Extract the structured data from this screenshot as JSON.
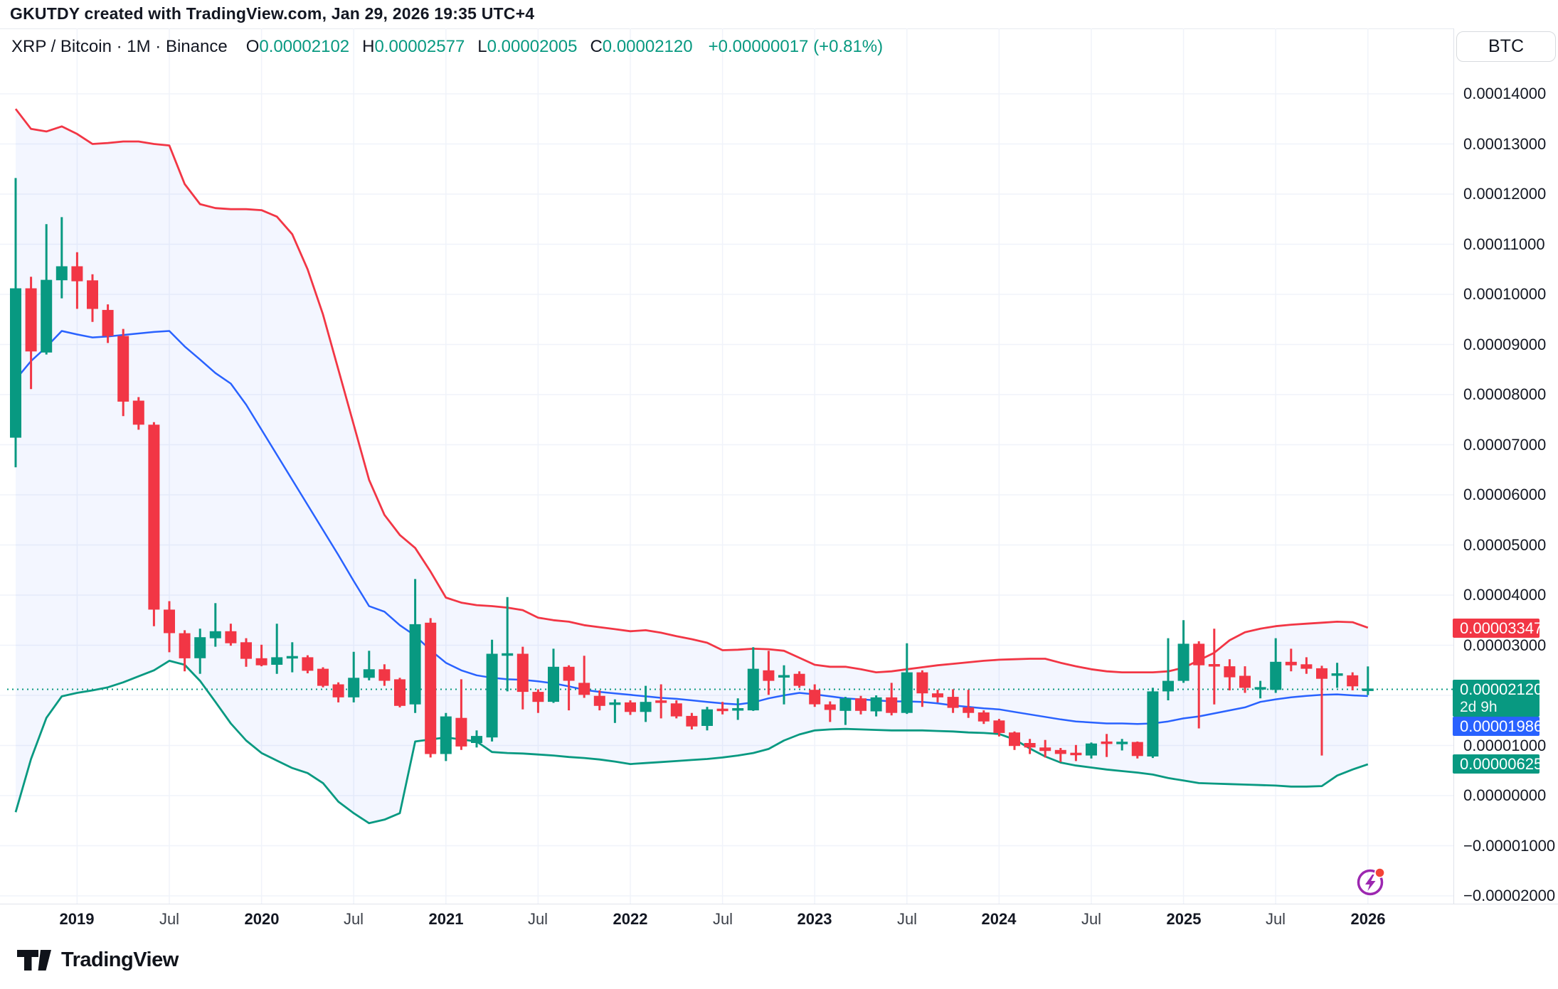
{
  "attribution": "GKUTDY created with TradingView.com, Jan 29, 2026 19:35 UTC+4",
  "legend": {
    "title": "XRP / Bitcoin · 1M · Binance",
    "ohlc": [
      {
        "k": "O",
        "v": "0.00002102"
      },
      {
        "k": "H",
        "v": "0.00002577"
      },
      {
        "k": "L",
        "v": "0.00002005"
      },
      {
        "k": "C",
        "v": "0.00002120"
      }
    ],
    "change": "+0.00000017 (+0.81%)"
  },
  "currency_button": "BTC",
  "footer": {
    "logo_text": "TradingView"
  },
  "colors": {
    "up": "#089981",
    "down": "#f23645",
    "basis_line": "#2962ff",
    "upper_band": "#f23645",
    "lower_band": "#089981",
    "band_fill": "rgba(41,98,255,0.055)",
    "grid": "#f0f3fa",
    "axis_border": "#e0e3eb",
    "axis_text": "#131722",
    "last_price_line": "#089981",
    "label_last_bg": "#089981",
    "label_basis_bg": "#2962ff",
    "label_upper_bg": "#f23645",
    "label_lower_bg": "#089981",
    "snapshot_ring": "#9c27b0",
    "snapshot_dot": "#f44336"
  },
  "price_axis": {
    "ticks": [
      {
        "label": "0.00014000",
        "v": 14
      },
      {
        "label": "0.00013000",
        "v": 13
      },
      {
        "label": "0.00012000",
        "v": 12
      },
      {
        "label": "0.00011000",
        "v": 11
      },
      {
        "label": "0.00010000",
        "v": 10
      },
      {
        "label": "0.00009000",
        "v": 9
      },
      {
        "label": "0.00008000",
        "v": 8
      },
      {
        "label": "0.00007000",
        "v": 7
      },
      {
        "label": "0.00006000",
        "v": 6
      },
      {
        "label": "0.00005000",
        "v": 5
      },
      {
        "label": "0.00004000",
        "v": 4
      },
      {
        "label": "0.00003000",
        "v": 3
      },
      {
        "label": "0.00001000",
        "v": 1
      },
      {
        "label": "0.00000000",
        "v": 0
      },
      {
        "label": "−0.00001000",
        "v": -1
      },
      {
        "label": "−0.00002000",
        "v": -2
      }
    ],
    "value_labels": [
      {
        "id": "upper-band",
        "text": "0.00003347",
        "bg": "label_upper_bg",
        "v": 3.347
      },
      {
        "id": "last-price",
        "text": "0.00002120",
        "sub": "2d 9h",
        "bg": "label_last_bg",
        "v": 2.12
      },
      {
        "id": "basis",
        "text": "0.00001986",
        "bg": "label_basis_bg",
        "v": 1.986,
        "stack_after": "last-price"
      },
      {
        "id": "lower-band",
        "text": "0.00000625",
        "bg": "label_lower_bg",
        "v": 0.625
      }
    ]
  },
  "time_axis": {
    "ticks": [
      {
        "label": "2019",
        "index": 4,
        "major": true
      },
      {
        "label": "Jul",
        "index": 10,
        "major": false
      },
      {
        "label": "2020",
        "index": 16,
        "major": true
      },
      {
        "label": "Jul",
        "index": 22,
        "major": false
      },
      {
        "label": "2021",
        "index": 28,
        "major": true
      },
      {
        "label": "Jul",
        "index": 34,
        "major": false
      },
      {
        "label": "2022",
        "index": 40,
        "major": true
      },
      {
        "label": "Jul",
        "index": 46,
        "major": false
      },
      {
        "label": "2023",
        "index": 52,
        "major": true
      },
      {
        "label": "Jul",
        "index": 58,
        "major": false
      },
      {
        "label": "2024",
        "index": 64,
        "major": true
      },
      {
        "label": "Jul",
        "index": 70,
        "major": false
      },
      {
        "label": "2025",
        "index": 76,
        "major": true
      },
      {
        "label": "Jul",
        "index": 82,
        "major": false
      },
      {
        "label": "2026",
        "index": 88,
        "major": true
      }
    ]
  },
  "chart_data": {
    "type": "candlestick",
    "title": "XRP / Bitcoin",
    "interval": "1M",
    "exchange": "Binance",
    "quote_unit": "BTC",
    "price_unit": 1e-05,
    "ylim_price_units": [
      -2,
      14.5
    ],
    "grid": true,
    "overlays": [
      "upper_band",
      "basis",
      "lower_band",
      "band_fill",
      "last_price_dotted_line"
    ],
    "last_close": 2.12,
    "current_bar_countdown": "2d 9h",
    "fields": [
      "month",
      "open",
      "high",
      "low",
      "close",
      "band_upper",
      "band_basis",
      "band_lower"
    ],
    "months": [
      [
        "2018-09",
        7.14,
        12.32,
        6.55,
        10.12,
        13.7,
        8.3,
        -0.33
      ],
      [
        "2018-10",
        10.12,
        10.35,
        8.11,
        8.86,
        13.3,
        8.67,
        0.73
      ],
      [
        "2018-11",
        8.84,
        11.4,
        8.8,
        10.29,
        13.25,
        8.95,
        1.55
      ],
      [
        "2018-12",
        10.28,
        11.54,
        9.92,
        10.56,
        13.35,
        9.27,
        1.98
      ],
      [
        "2019-01",
        10.56,
        10.84,
        9.71,
        10.26,
        13.2,
        9.2,
        2.05
      ],
      [
        "2019-02",
        10.28,
        10.4,
        9.45,
        9.71,
        13.0,
        9.14,
        2.1
      ],
      [
        "2019-03",
        9.69,
        9.8,
        9.03,
        9.17,
        13.02,
        9.16,
        2.16
      ],
      [
        "2019-04",
        9.17,
        9.31,
        7.57,
        7.86,
        13.05,
        9.19,
        2.26
      ],
      [
        "2019-05",
        7.88,
        7.95,
        7.3,
        7.4,
        13.05,
        9.22,
        2.38
      ],
      [
        "2019-06",
        7.4,
        7.45,
        3.38,
        3.71,
        13.0,
        9.25,
        2.5
      ],
      [
        "2019-07",
        3.71,
        3.88,
        2.86,
        3.24,
        12.97,
        9.27,
        2.69
      ],
      [
        "2019-08",
        3.24,
        3.3,
        2.48,
        2.74,
        12.2,
        8.96,
        2.61
      ],
      [
        "2019-09",
        2.74,
        3.33,
        2.43,
        3.16,
        11.8,
        8.7,
        2.29
      ],
      [
        "2019-10",
        3.14,
        3.84,
        2.97,
        3.28,
        11.72,
        8.43,
        1.87
      ],
      [
        "2019-11",
        3.28,
        3.43,
        2.99,
        3.04,
        11.7,
        8.22,
        1.44
      ],
      [
        "2019-12",
        3.06,
        3.14,
        2.57,
        2.73,
        11.7,
        7.8,
        1.1
      ],
      [
        "2020-01",
        2.74,
        3.01,
        2.58,
        2.6,
        11.68,
        7.3,
        0.85
      ],
      [
        "2020-02",
        2.61,
        3.43,
        2.43,
        2.76,
        11.55,
        6.8,
        0.7
      ],
      [
        "2020-03",
        2.76,
        3.06,
        2.46,
        2.76,
        11.2,
        6.3,
        0.55
      ],
      [
        "2020-04",
        2.76,
        2.8,
        2.44,
        2.49,
        10.5,
        5.8,
        0.45
      ],
      [
        "2020-05",
        2.53,
        2.56,
        2.16,
        2.19,
        9.6,
        5.3,
        0.25
      ],
      [
        "2020-06",
        2.22,
        2.26,
        1.86,
        1.96,
        8.5,
        4.8,
        -0.12
      ],
      [
        "2020-07",
        1.96,
        2.87,
        1.86,
        2.35,
        7.4,
        4.28,
        -0.35
      ],
      [
        "2020-08",
        2.35,
        2.89,
        2.3,
        2.52,
        6.3,
        3.78,
        -0.55
      ],
      [
        "2020-09",
        2.52,
        2.62,
        2.19,
        2.29,
        5.6,
        3.67,
        -0.48
      ],
      [
        "2020-10",
        2.32,
        2.35,
        1.76,
        1.79,
        5.2,
        3.4,
        -0.35
      ],
      [
        "2020-11",
        1.82,
        4.32,
        1.65,
        3.42,
        4.94,
        3.19,
        1.08
      ],
      [
        "2020-12",
        3.45,
        3.54,
        0.76,
        0.83,
        4.47,
        2.9,
        1.12
      ],
      [
        "2021-01",
        0.83,
        1.65,
        0.69,
        1.58,
        3.95,
        2.65,
        1.16
      ],
      [
        "2021-02",
        1.55,
        2.32,
        0.91,
        0.98,
        3.85,
        2.5,
        1.12
      ],
      [
        "2021-03",
        1.05,
        1.3,
        0.96,
        1.19,
        3.8,
        2.4,
        1.08
      ],
      [
        "2021-04",
        1.16,
        3.11,
        1.08,
        2.83,
        3.78,
        2.35,
        0.87
      ],
      [
        "2021-05",
        2.8,
        3.96,
        2.08,
        2.83,
        3.75,
        2.32,
        0.85
      ],
      [
        "2021-06",
        2.83,
        2.97,
        1.72,
        2.07,
        3.7,
        2.31,
        0.84
      ],
      [
        "2021-07",
        2.07,
        2.12,
        1.65,
        1.87,
        3.55,
        2.28,
        0.82
      ],
      [
        "2021-08",
        1.87,
        2.93,
        1.85,
        2.57,
        3.5,
        2.24,
        0.8
      ],
      [
        "2021-09",
        2.57,
        2.6,
        1.7,
        2.29,
        3.47,
        2.18,
        0.77
      ],
      [
        "2021-10",
        2.25,
        2.79,
        1.95,
        2.01,
        3.4,
        2.11,
        0.75
      ],
      [
        "2021-11",
        1.99,
        2.1,
        1.7,
        1.79,
        3.36,
        2.07,
        0.72
      ],
      [
        "2021-12",
        1.83,
        1.92,
        1.45,
        1.84,
        3.32,
        2.04,
        0.68
      ],
      [
        "2022-01",
        1.86,
        1.9,
        1.61,
        1.67,
        3.28,
        2.01,
        0.63
      ],
      [
        "2022-02",
        1.67,
        2.19,
        1.47,
        1.87,
        3.3,
        1.98,
        0.65
      ],
      [
        "2022-03",
        1.89,
        2.22,
        1.54,
        1.86,
        3.25,
        1.95,
        0.67
      ],
      [
        "2022-04",
        1.84,
        1.9,
        1.54,
        1.58,
        3.18,
        1.93,
        0.69
      ],
      [
        "2022-05",
        1.59,
        1.65,
        1.32,
        1.38,
        3.12,
        1.9,
        0.71
      ],
      [
        "2022-06",
        1.39,
        1.77,
        1.3,
        1.72,
        3.05,
        1.87,
        0.73
      ],
      [
        "2022-07",
        1.72,
        1.87,
        1.62,
        1.7,
        2.9,
        1.84,
        0.76
      ],
      [
        "2022-08",
        1.72,
        1.94,
        1.51,
        1.72,
        2.91,
        1.82,
        0.8
      ],
      [
        "2022-09",
        1.7,
        2.96,
        1.69,
        2.53,
        2.93,
        1.86,
        0.85
      ],
      [
        "2022-10",
        2.5,
        2.89,
        2.01,
        2.29,
        2.92,
        1.94,
        0.93
      ],
      [
        "2022-11",
        2.38,
        2.6,
        1.82,
        2.38,
        2.89,
        2.0,
        1.1
      ],
      [
        "2022-12",
        2.43,
        2.48,
        2.15,
        2.19,
        2.75,
        2.05,
        1.22
      ],
      [
        "2023-01",
        2.11,
        2.22,
        1.77,
        1.82,
        2.61,
        2.02,
        1.3
      ],
      [
        "2023-02",
        1.82,
        1.88,
        1.47,
        1.71,
        2.57,
        1.98,
        1.32
      ],
      [
        "2023-03",
        1.69,
        1.97,
        1.41,
        1.94,
        2.57,
        1.94,
        1.33
      ],
      [
        "2023-04",
        1.94,
        1.99,
        1.62,
        1.69,
        2.52,
        1.92,
        1.32
      ],
      [
        "2023-05",
        1.68,
        2.0,
        1.58,
        1.96,
        2.46,
        1.9,
        1.31
      ],
      [
        "2023-06",
        1.96,
        2.25,
        1.6,
        1.65,
        2.48,
        1.88,
        1.3
      ],
      [
        "2023-07",
        1.65,
        3.04,
        1.63,
        2.46,
        2.52,
        1.88,
        1.3
      ],
      [
        "2023-08",
        2.46,
        2.5,
        1.77,
        2.04,
        2.56,
        1.87,
        1.3
      ],
      [
        "2023-09",
        2.04,
        2.11,
        1.86,
        1.96,
        2.6,
        1.84,
        1.29
      ],
      [
        "2023-10",
        1.97,
        2.12,
        1.65,
        1.75,
        2.63,
        1.8,
        1.28
      ],
      [
        "2023-11",
        1.76,
        2.11,
        1.55,
        1.65,
        2.66,
        1.77,
        1.26
      ],
      [
        "2023-12",
        1.66,
        1.7,
        1.43,
        1.48,
        2.69,
        1.74,
        1.25
      ],
      [
        "2024-01",
        1.5,
        1.53,
        1.18,
        1.25,
        2.71,
        1.72,
        1.23
      ],
      [
        "2024-02",
        1.26,
        1.28,
        0.91,
        0.99,
        2.72,
        1.67,
        1.12
      ],
      [
        "2024-03",
        1.05,
        1.13,
        0.83,
        0.96,
        2.73,
        1.62,
        0.94
      ],
      [
        "2024-04",
        0.96,
        1.11,
        0.76,
        0.89,
        2.73,
        1.57,
        0.78
      ],
      [
        "2024-05",
        0.91,
        0.95,
        0.67,
        0.83,
        2.65,
        1.52,
        0.66
      ],
      [
        "2024-06",
        0.84,
        1.01,
        0.69,
        0.82,
        2.58,
        1.48,
        0.6
      ],
      [
        "2024-07",
        0.8,
        1.06,
        0.74,
        1.04,
        2.52,
        1.46,
        0.56
      ],
      [
        "2024-08",
        1.06,
        1.23,
        0.77,
        1.05,
        2.48,
        1.44,
        0.52
      ],
      [
        "2024-09",
        1.04,
        1.13,
        0.9,
        1.06,
        2.46,
        1.44,
        0.49
      ],
      [
        "2024-10",
        1.07,
        1.08,
        0.74,
        0.79,
        2.46,
        1.43,
        0.46
      ],
      [
        "2024-11",
        0.78,
        2.15,
        0.75,
        2.08,
        2.46,
        1.44,
        0.42
      ],
      [
        "2024-12",
        2.08,
        3.14,
        1.9,
        2.29,
        2.48,
        1.48,
        0.35
      ],
      [
        "2025-01",
        2.29,
        3.5,
        2.25,
        3.03,
        2.55,
        1.54,
        0.3
      ],
      [
        "2025-02",
        3.03,
        3.08,
        1.34,
        2.6,
        2.7,
        1.58,
        0.25
      ],
      [
        "2025-03",
        2.62,
        3.33,
        1.82,
        2.58,
        2.85,
        1.64,
        0.24
      ],
      [
        "2025-04",
        2.58,
        2.72,
        2.1,
        2.36,
        3.1,
        1.7,
        0.23
      ],
      [
        "2025-05",
        2.39,
        2.58,
        2.05,
        2.15,
        3.26,
        1.76,
        0.22
      ],
      [
        "2025-06",
        2.13,
        2.29,
        1.94,
        2.15,
        3.33,
        1.87,
        0.21
      ],
      [
        "2025-07",
        2.11,
        3.14,
        2.05,
        2.67,
        3.38,
        1.92,
        0.2
      ],
      [
        "2025-08",
        2.67,
        2.93,
        2.48,
        2.6,
        3.41,
        1.96,
        0.18
      ],
      [
        "2025-09",
        2.62,
        2.76,
        2.43,
        2.53,
        3.43,
        1.99,
        0.18
      ],
      [
        "2025-10",
        2.54,
        2.59,
        0.8,
        2.33,
        3.45,
        2.01,
        0.19
      ],
      [
        "2025-11",
        2.4,
        2.65,
        2.15,
        2.43,
        3.47,
        2.02,
        0.4
      ],
      [
        "2025-12",
        2.4,
        2.46,
        2.1,
        2.18,
        3.46,
        2.0,
        0.52
      ],
      [
        "2026-01",
        2.102,
        2.577,
        2.005,
        2.12,
        3.35,
        1.986,
        0.625
      ]
    ]
  }
}
